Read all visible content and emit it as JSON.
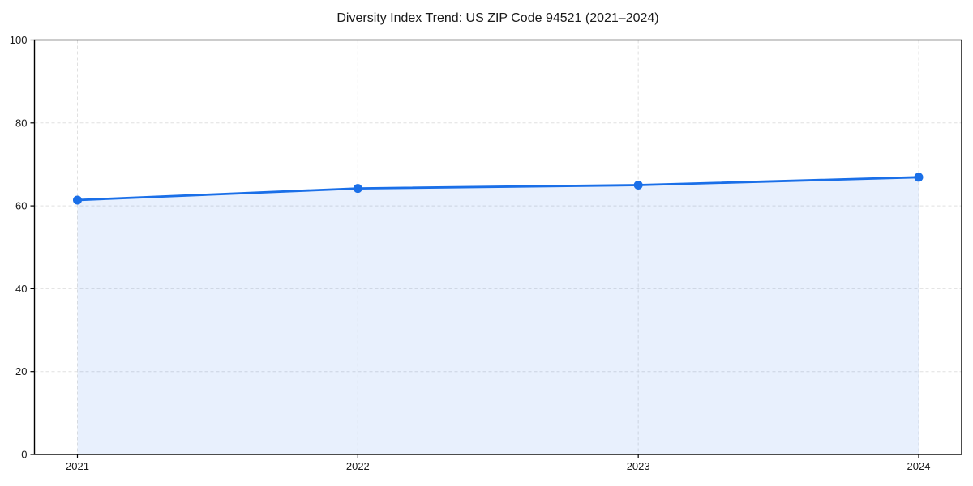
{
  "chart_data": {
    "type": "line",
    "title": "Diversity Index Trend: US ZIP Code 94521 (2021–2024)",
    "x_categories": [
      "2021",
      "2022",
      "2023",
      "2024"
    ],
    "series": [
      {
        "name": "Diversity Index",
        "values": [
          61.4,
          64.2,
          65.0,
          66.9
        ]
      }
    ],
    "xlabel": "",
    "ylabel": "",
    "ylim": [
      0,
      100
    ],
    "yticks": [
      0,
      20,
      40,
      60,
      80,
      100
    ],
    "grid": true,
    "grid_style": "dashed",
    "legend": "none",
    "area_fill": true,
    "marker": "circle",
    "colors": {
      "line": "#1a6fe8",
      "marker": "#1a6fe8",
      "fill": "#1a6fe8",
      "fill_opacity": 0.1,
      "gridline": "#e0e0e0",
      "axis": "#000000",
      "text": "#1a1a1a",
      "background": "#ffffff"
    }
  }
}
